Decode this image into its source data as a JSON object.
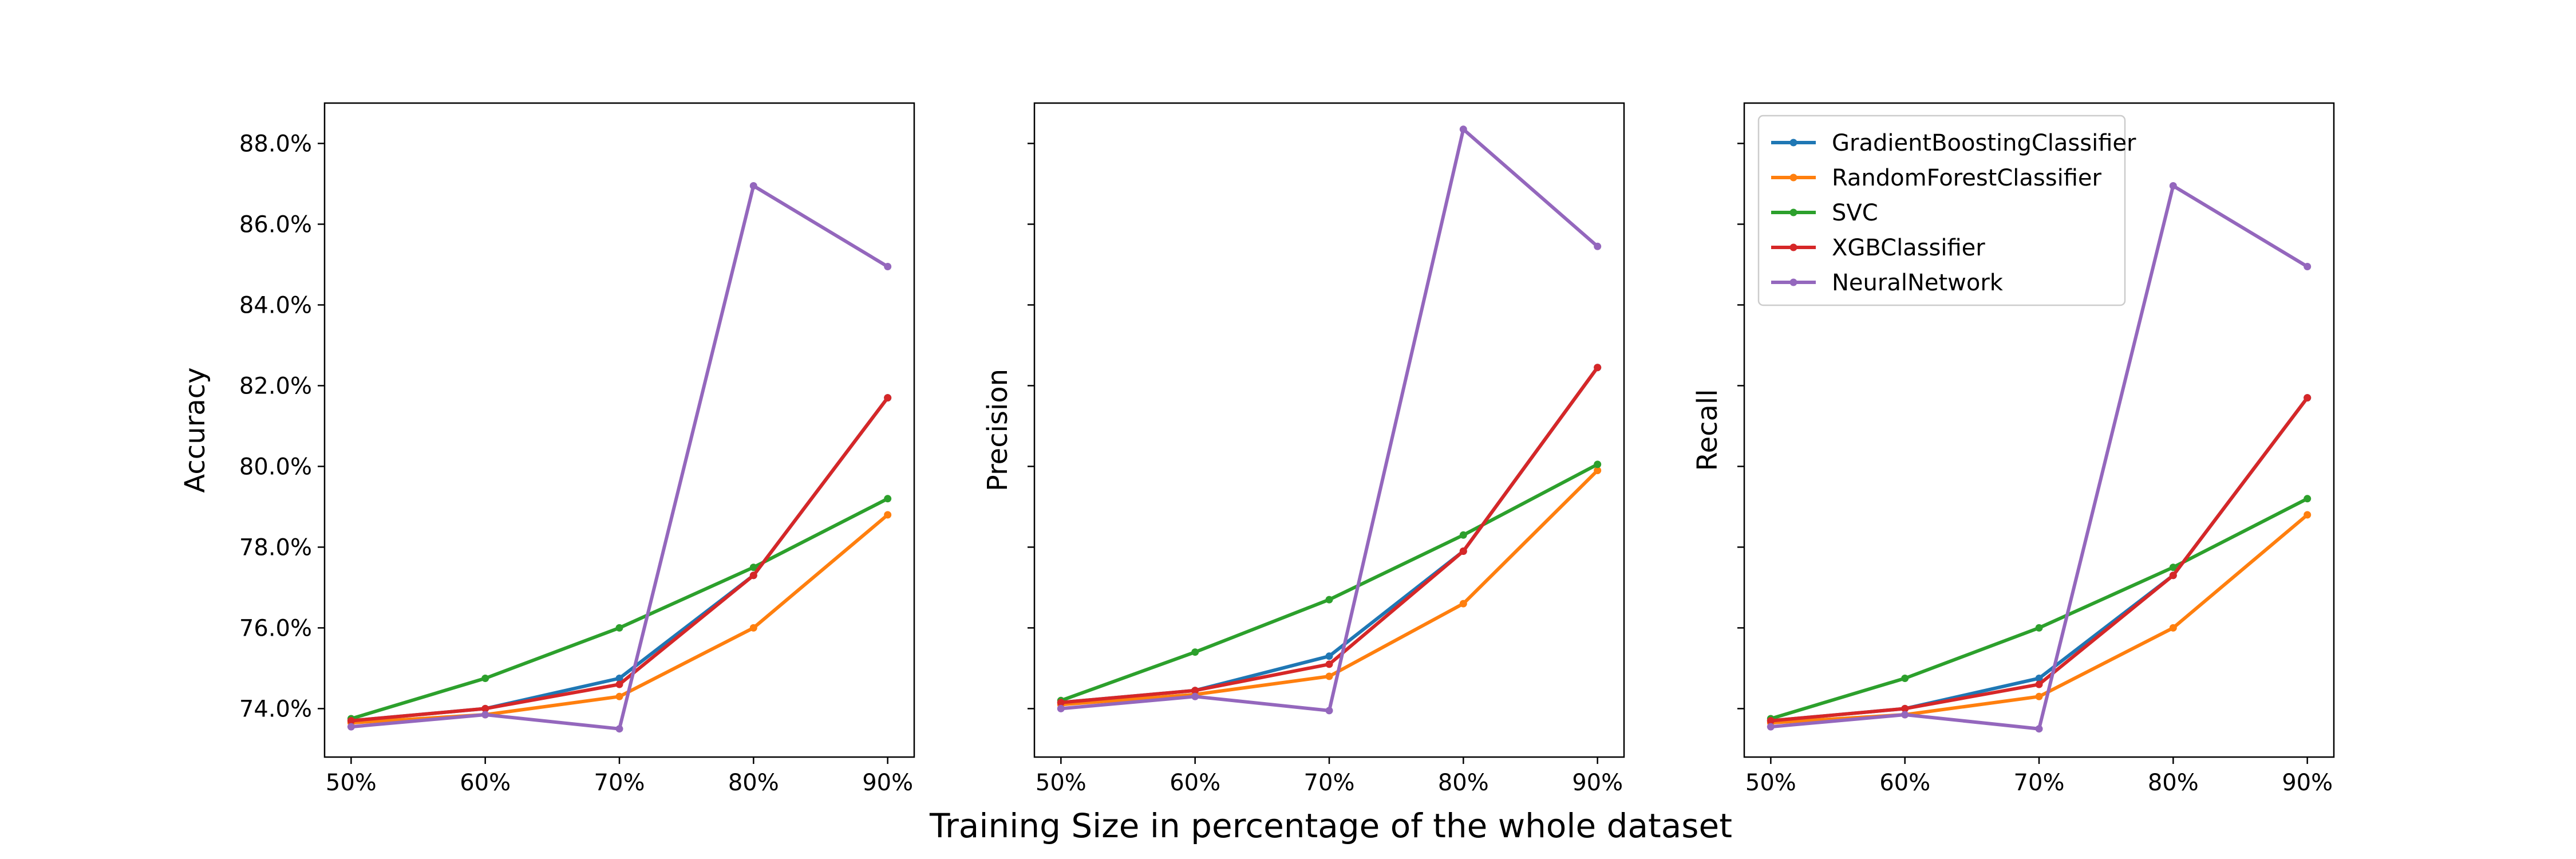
{
  "figure": {
    "xlabel": "Training Size in percentage of the whole dataset"
  },
  "colors": {
    "GradientBoostingClassifier": "#1f77b4",
    "RandomForestClassifier": "#ff7f0e",
    "SVC": "#2ca02c",
    "XGBClassifier": "#d62728",
    "NeuralNetwork": "#9467bd"
  },
  "chart_data": [
    {
      "type": "line",
      "ylabel": "Accuracy",
      "categories": [
        "50%",
        "60%",
        "70%",
        "80%",
        "90%"
      ],
      "ylim": [
        72.8,
        89.0
      ],
      "yticks": [
        74,
        76,
        78,
        80,
        82,
        84,
        86,
        88
      ],
      "ytick_labels": [
        "74.0%",
        "76.0%",
        "78.0%",
        "80.0%",
        "82.0%",
        "84.0%",
        "86.0%",
        "88.0%"
      ],
      "show_yticklabels": true,
      "grid": false,
      "series": [
        {
          "name": "GradientBoostingClassifier",
          "values": [
            73.7,
            74.0,
            74.75,
            77.3,
            81.7
          ]
        },
        {
          "name": "RandomForestClassifier",
          "values": [
            73.65,
            73.85,
            74.3,
            76.0,
            78.8
          ]
        },
        {
          "name": "SVC",
          "values": [
            73.75,
            74.75,
            76.0,
            77.5,
            79.2
          ]
        },
        {
          "name": "XGBClassifier",
          "values": [
            73.7,
            74.0,
            74.6,
            77.3,
            81.7
          ]
        },
        {
          "name": "NeuralNetwork",
          "values": [
            73.55,
            73.85,
            73.5,
            86.95,
            84.95
          ]
        }
      ]
    },
    {
      "type": "line",
      "ylabel": "Precision",
      "categories": [
        "50%",
        "60%",
        "70%",
        "80%",
        "90%"
      ],
      "ylim": [
        72.8,
        89.0
      ],
      "yticks": [
        74,
        76,
        78,
        80,
        82,
        84,
        86,
        88
      ],
      "ytick_labels": [],
      "show_yticklabels": false,
      "grid": false,
      "series": [
        {
          "name": "GradientBoostingClassifier",
          "values": [
            74.15,
            74.45,
            75.3,
            77.9,
            82.45
          ]
        },
        {
          "name": "RandomForestClassifier",
          "values": [
            74.1,
            74.35,
            74.8,
            76.6,
            79.9
          ]
        },
        {
          "name": "SVC",
          "values": [
            74.2,
            75.4,
            76.7,
            78.3,
            80.05
          ]
        },
        {
          "name": "XGBClassifier",
          "values": [
            74.15,
            74.45,
            75.1,
            77.9,
            82.45
          ]
        },
        {
          "name": "NeuralNetwork",
          "values": [
            74.0,
            74.3,
            73.95,
            88.35,
            85.45
          ]
        }
      ]
    },
    {
      "type": "line",
      "ylabel": "Recall",
      "categories": [
        "50%",
        "60%",
        "70%",
        "80%",
        "90%"
      ],
      "ylim": [
        72.8,
        89.0
      ],
      "yticks": [
        74,
        76,
        78,
        80,
        82,
        84,
        86,
        88
      ],
      "ytick_labels": [],
      "show_yticklabels": false,
      "grid": false,
      "legend": "top-left",
      "series": [
        {
          "name": "GradientBoostingClassifier",
          "values": [
            73.7,
            74.0,
            74.75,
            77.3,
            81.7
          ]
        },
        {
          "name": "RandomForestClassifier",
          "values": [
            73.65,
            73.85,
            74.3,
            76.0,
            78.8
          ]
        },
        {
          "name": "SVC",
          "values": [
            73.75,
            74.75,
            76.0,
            77.5,
            79.2
          ]
        },
        {
          "name": "XGBClassifier",
          "values": [
            73.7,
            74.0,
            74.6,
            77.3,
            81.7
          ]
        },
        {
          "name": "NeuralNetwork",
          "values": [
            73.55,
            73.85,
            73.5,
            86.95,
            84.95
          ]
        }
      ]
    }
  ]
}
